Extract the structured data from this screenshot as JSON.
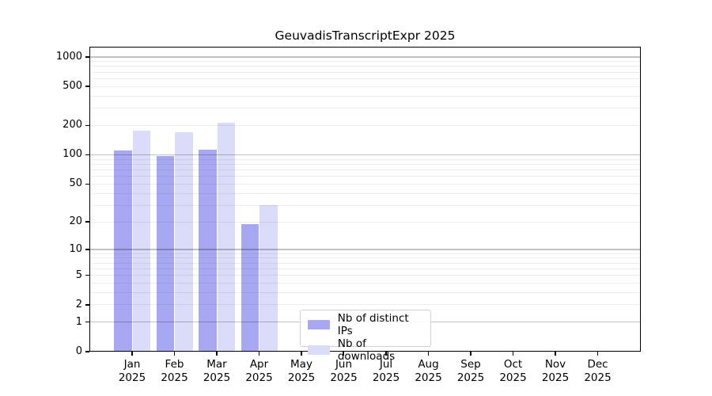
{
  "chart_data": {
    "type": "bar",
    "title": "GeuvadisTranscriptExpr 2025",
    "categories": [
      "Jan 2025",
      "Feb 2025",
      "Mar 2025",
      "Apr 2025",
      "May 2025",
      "Jun 2025",
      "Jul 2025",
      "Aug 2025",
      "Sep 2025",
      "Oct 2025",
      "Nov 2025",
      "Dec 2025"
    ],
    "series": [
      {
        "name": "Nb of distinct IPs",
        "color": "#a8a8f2",
        "values": [
          110,
          97,
          113,
          19,
          null,
          null,
          null,
          null,
          null,
          null,
          null,
          null
        ]
      },
      {
        "name": "Nb of downloads",
        "color": "#dadcf9",
        "values": [
          176,
          169,
          212,
          30,
          null,
          null,
          null,
          null,
          null,
          null,
          null,
          null
        ]
      }
    ],
    "xlabel": "",
    "ylabel": "",
    "yscale": "log1p",
    "yticks": [
      0,
      1,
      2,
      5,
      10,
      20,
      50,
      100,
      200,
      500,
      1000
    ],
    "ylim": [
      0,
      1270
    ],
    "grid": "horizontal, log minor + decade major",
    "legend_position": "inside bottom-center",
    "colors": {
      "axis": "#000000",
      "grid_major": "#c6c6c6",
      "grid_minor": "#ededed",
      "background": "#ffffff"
    }
  }
}
